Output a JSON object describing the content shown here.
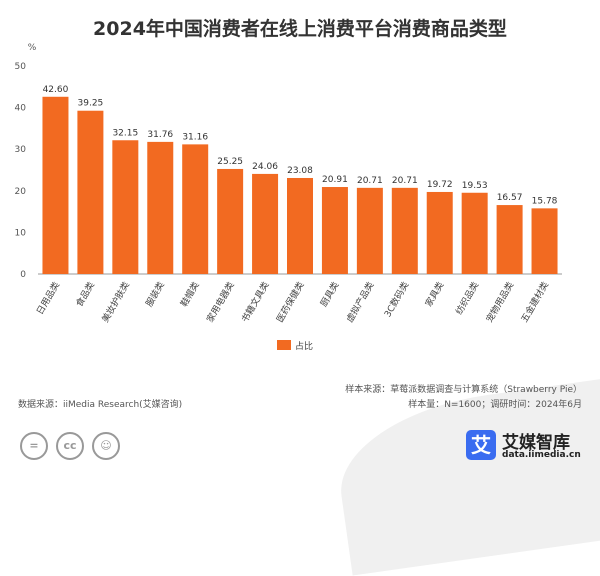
{
  "chart_data": {
    "type": "bar",
    "title": "2024年中国消费者在线上消费平台消费商品类型",
    "ylabel": "%",
    "ylim": [
      0,
      50
    ],
    "yticks": [
      0,
      10,
      20,
      30,
      40,
      50
    ],
    "grid": false,
    "legend_position": "bottom",
    "color": "#f26a21",
    "categories": [
      "日用品类",
      "食品类",
      "美妆护肤类",
      "服装类",
      "鞋帽类",
      "家用电器类",
      "书籍文具类",
      "医药保健类",
      "厨具类",
      "虚拟产品类",
      "3C数码类",
      "家具类",
      "纺织品类",
      "宠物用品类",
      "五金建材类"
    ],
    "series": [
      {
        "name": "占比",
        "values": [
          42.6,
          39.25,
          32.15,
          31.76,
          31.16,
          25.25,
          24.06,
          23.08,
          20.91,
          20.71,
          20.71,
          19.72,
          19.53,
          16.57,
          15.78
        ]
      }
    ],
    "value_labels": [
      "42.60",
      "39.25",
      "32.15",
      "31.76",
      "31.16",
      "25.25",
      "24.06",
      "23.08",
      "20.91",
      "20.71",
      "20.71",
      "19.72",
      "19.53",
      "16.57",
      "15.78"
    ]
  },
  "footer": {
    "data_source": "数据来源：iiMedia Research(艾媒咨询)",
    "sample_source": "样本来源：草莓派数据调查与计算系统（Strawberry Pie）",
    "sample_size": "样本量：N=1600；调研时间：2024年6月",
    "brand": "艾媒智库",
    "brand_mark": "艾",
    "url": "data.iimedia.cn",
    "license_icons": [
      "cc-nd-icon",
      "cc-icon",
      "cc-by-icon"
    ]
  }
}
